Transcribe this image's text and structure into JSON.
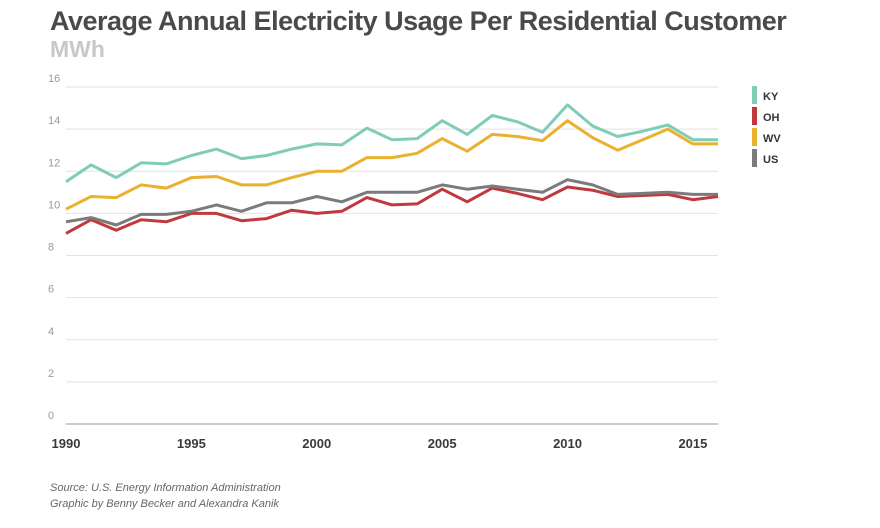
{
  "title": "Average Annual Electricity Usage Per Residential Customer",
  "subtitle": "MWh",
  "footer": {
    "source": "Source: U.S. Energy Information Administration",
    "credit": "Graphic by Benny Becker and Alexandra Kanik"
  },
  "chart_data": {
    "type": "line",
    "title": "Average Annual Electricity Usage Per Residential Customer",
    "ylabel": "MWh",
    "xlabel": "",
    "xlim": [
      1990,
      2016
    ],
    "ylim": [
      0,
      16
    ],
    "yticks": [
      0,
      2,
      4,
      6,
      8,
      10,
      12,
      14,
      16
    ],
    "xticks": [
      1990,
      1995,
      2000,
      2005,
      2010,
      2015
    ],
    "grid": true,
    "legend_position": "right",
    "x": [
      1990,
      1991,
      1992,
      1993,
      1994,
      1995,
      1996,
      1997,
      1998,
      1999,
      2000,
      2001,
      2002,
      2003,
      2004,
      2005,
      2006,
      2007,
      2008,
      2009,
      2010,
      2011,
      2012,
      2013,
      2014,
      2015,
      2016
    ],
    "series": [
      {
        "name": "KY",
        "color": "#7fcdb9",
        "values": [
          11.5,
          12.3,
          11.7,
          12.4,
          12.35,
          12.75,
          13.05,
          12.6,
          12.75,
          13.05,
          13.3,
          13.25,
          14.05,
          13.5,
          13.55,
          14.4,
          13.75,
          14.65,
          14.35,
          13.85,
          15.15,
          14.15,
          13.65,
          13.9,
          14.2,
          13.5,
          13.5
        ]
      },
      {
        "name": "OH",
        "color": "#c0393e",
        "values": [
          9.05,
          9.7,
          9.2,
          9.7,
          9.6,
          10.0,
          10.0,
          9.65,
          9.75,
          10.15,
          10.0,
          10.1,
          10.75,
          10.4,
          10.45,
          11.15,
          10.55,
          11.2,
          10.95,
          10.65,
          11.25,
          11.1,
          10.8,
          10.85,
          10.9,
          10.65,
          10.8
        ]
      },
      {
        "name": "WV",
        "color": "#eab12f",
        "values": [
          10.2,
          10.8,
          10.75,
          11.35,
          11.2,
          11.7,
          11.75,
          11.35,
          11.35,
          11.7,
          12.0,
          12.0,
          12.65,
          12.65,
          12.85,
          13.55,
          12.95,
          13.75,
          13.65,
          13.45,
          14.4,
          13.6,
          13.0,
          13.5,
          14.0,
          13.3,
          13.3
        ]
      },
      {
        "name": "US",
        "color": "#7b7b7b",
        "values": [
          9.6,
          9.8,
          9.45,
          9.95,
          9.95,
          10.1,
          10.4,
          10.1,
          10.5,
          10.5,
          10.8,
          10.55,
          11.0,
          11.0,
          11.0,
          11.35,
          11.15,
          11.3,
          11.15,
          11.0,
          11.6,
          11.35,
          10.9,
          10.95,
          11.0,
          10.9,
          10.9
        ]
      }
    ]
  }
}
